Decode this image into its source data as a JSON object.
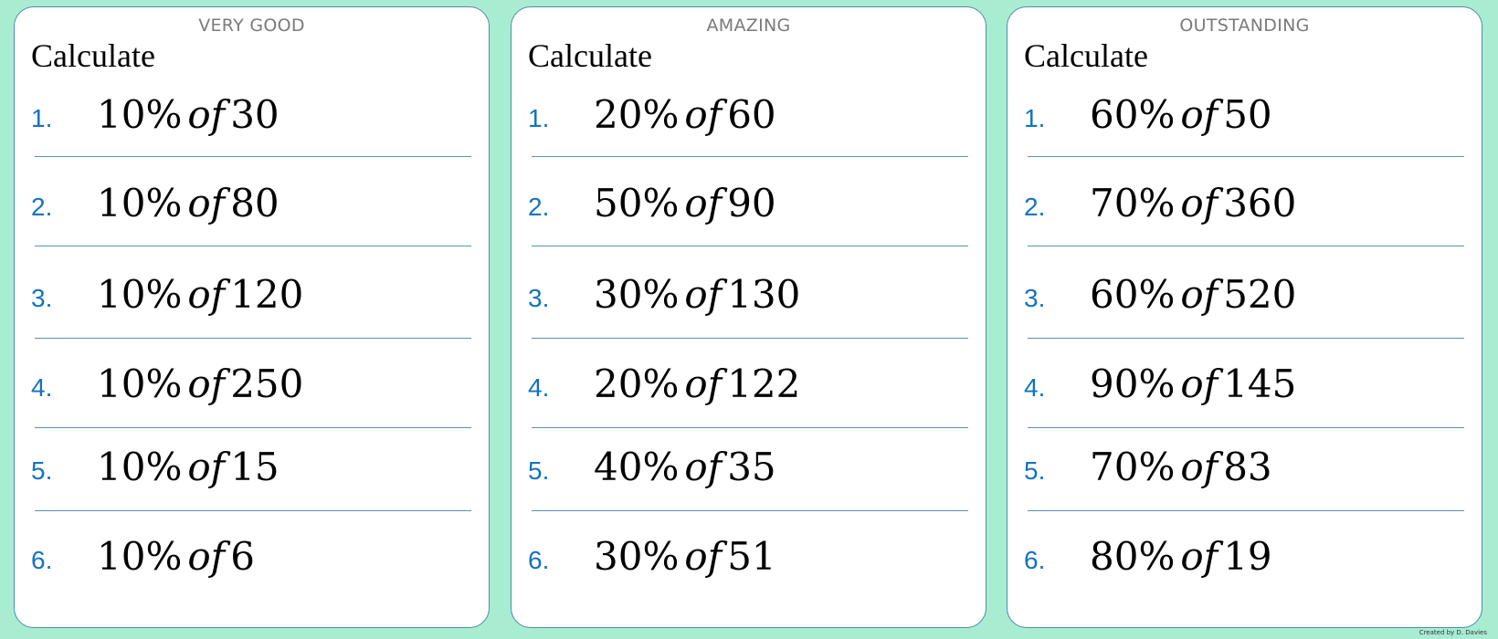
{
  "cards": [
    {
      "level": "VERY GOOD",
      "heading": "Calculate",
      "questions": [
        {
          "num": "1.",
          "pct": "10%",
          "of": "of",
          "value": "30"
        },
        {
          "num": "2.",
          "pct": "10%",
          "of": "of",
          "value": "80"
        },
        {
          "num": "3.",
          "pct": "10%",
          "of": "of",
          "value": "120"
        },
        {
          "num": "4.",
          "pct": "10%",
          "of": "of",
          "value": "250"
        },
        {
          "num": "5.",
          "pct": "10%",
          "of": "of",
          "value": "15"
        },
        {
          "num": "6.",
          "pct": "10%",
          "of": "of",
          "value": "6"
        }
      ]
    },
    {
      "level": "AMAZING",
      "heading": "Calculate",
      "questions": [
        {
          "num": "1.",
          "pct": "20%",
          "of": "of",
          "value": "60"
        },
        {
          "num": "2.",
          "pct": "50%",
          "of": "of",
          "value": "90"
        },
        {
          "num": "3.",
          "pct": "30%",
          "of": "of",
          "value": "130"
        },
        {
          "num": "4.",
          "pct": "20%",
          "of": "of",
          "value": "122"
        },
        {
          "num": "5.",
          "pct": "40%",
          "of": "of",
          "value": "35"
        },
        {
          "num": "6.",
          "pct": "30%",
          "of": "of",
          "value": "51"
        }
      ]
    },
    {
      "level": "OUTSTANDING",
      "heading": "Calculate",
      "questions": [
        {
          "num": "1.",
          "pct": "60%",
          "of": "of",
          "value": "50"
        },
        {
          "num": "2.",
          "pct": "70%",
          "of": "of",
          "value": "360"
        },
        {
          "num": "3.",
          "pct": "60%",
          "of": "of",
          "value": "520"
        },
        {
          "num": "4.",
          "pct": "90%",
          "of": "of",
          "value": "145"
        },
        {
          "num": "5.",
          "pct": "70%",
          "of": "of",
          "value": "83"
        },
        {
          "num": "6.",
          "pct": "80%",
          "of": "of",
          "value": "19"
        }
      ]
    }
  ],
  "footer": {
    "credit": "Created by D. Davies"
  },
  "colors": {
    "background": "#a8ecd2",
    "card_border": "#4d8fa3",
    "number": "#1273c2",
    "rule_line": "#5b8fb8"
  }
}
